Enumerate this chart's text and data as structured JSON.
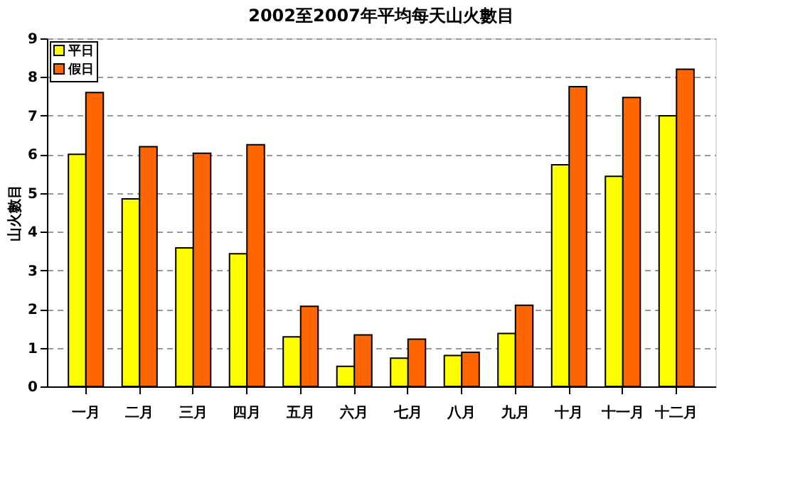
{
  "chart_data": {
    "type": "bar",
    "title": "2002至2007年平均每天山火數目",
    "ylabel": "山火數目",
    "categories": [
      "一月",
      "二月",
      "三月",
      "四月",
      "五月",
      "六月",
      "七月",
      "八月",
      "九月",
      "十月",
      "十一月",
      "十二月"
    ],
    "series": [
      {
        "name": "平日",
        "color": "#ffff00",
        "values": [
          6.0,
          4.85,
          3.58,
          3.43,
          1.28,
          0.52,
          0.73,
          0.8,
          1.37,
          5.73,
          5.43,
          7.0
        ]
      },
      {
        "name": "假日",
        "color": "#ff6600",
        "values": [
          7.6,
          6.2,
          6.03,
          6.25,
          2.07,
          1.33,
          1.22,
          0.88,
          2.1,
          7.75,
          7.47,
          8.2
        ]
      }
    ],
    "ylim": [
      0,
      9
    ],
    "yticks": [
      0,
      1,
      2,
      3,
      4,
      5,
      6,
      7,
      8,
      9
    ],
    "grid": "y",
    "legend": "top left"
  }
}
